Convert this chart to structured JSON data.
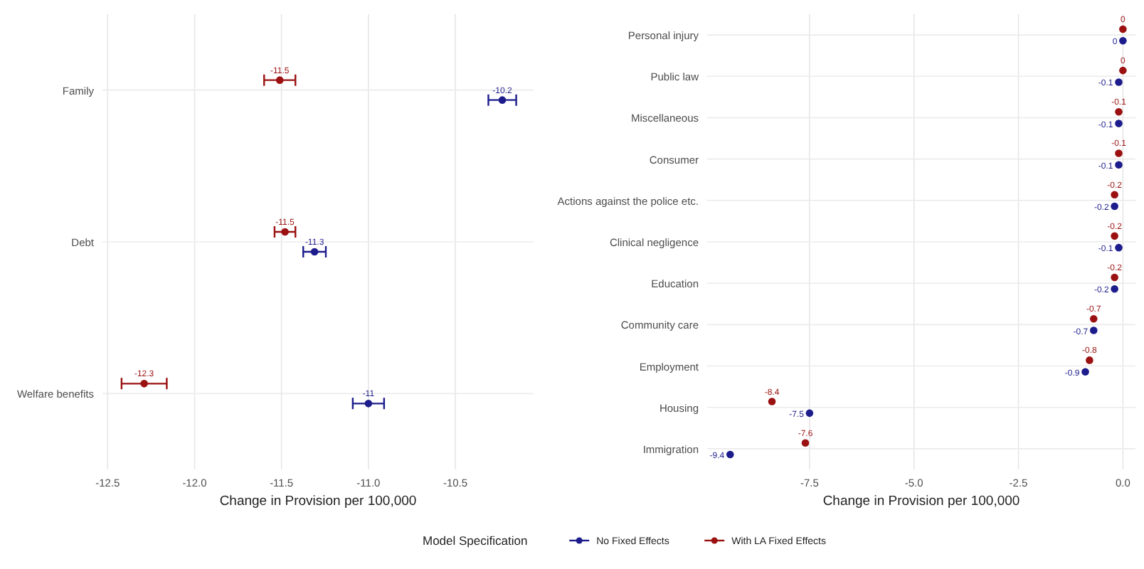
{
  "chart_data": [
    {
      "type": "scatter",
      "orientation": "horizontal",
      "xlabel": "Change in Provision per 100,000",
      "categories": [
        "Family",
        "Debt",
        "Welfare benefits"
      ],
      "xlim": [
        -12.53,
        -10.05
      ],
      "xticks": [
        -12.5,
        {
          "value": -12,
          "label": "-12.0"
        },
        -11.5,
        {
          "value": -11,
          "label": "-11.0"
        },
        -10.5
      ],
      "grid": true,
      "marker": "circle",
      "legend": "bottom",
      "legend_title": "Model Specification",
      "series": [
        {
          "name": "No Fixed Effects",
          "color": "#1c1c8c",
          "values": [
            -10.23,
            -11.31,
            -11.0
          ],
          "errors": [
            0.08,
            0.065,
            0.09
          ],
          "value_labels": [
            "-10.2",
            "-11.3",
            "-11"
          ]
        },
        {
          "name": "With LA Fixed Effects",
          "color": "#9b1010",
          "values": [
            -11.51,
            -11.48,
            -12.29
          ],
          "errors": [
            0.09,
            0.06,
            0.13
          ],
          "value_labels": [
            "-11.5",
            "-11.5",
            "-12.3"
          ]
        }
      ]
    },
    {
      "type": "scatter",
      "orientation": "horizontal",
      "xlabel": "Change in Provision per 100,000",
      "categories": [
        "Personal injury",
        "Public law",
        "Miscellaneous",
        "Consumer",
        "Actions against the police etc.",
        "Clinical negligence",
        "Education",
        "Community care",
        "Employment",
        "Housing",
        "Immigration"
      ],
      "xlim": [
        -9.95,
        0.3
      ],
      "xticks": [
        -7.5,
        {
          "value": -5,
          "label": "-5.0"
        },
        -2.5,
        {
          "value": 0,
          "label": "0.0"
        }
      ],
      "grid": true,
      "marker": "circle",
      "series": [
        {
          "color": "#1c1c8c",
          "values": [
            0,
            -0.1,
            -0.1,
            -0.1,
            -0.2,
            -0.1,
            -0.2,
            -0.7,
            -0.9,
            -7.5,
            -9.4
          ],
          "value_labels": [
            "0",
            "-0.1",
            "-0.1",
            "-0.1",
            "-0.2",
            "-0.1",
            "-0.2",
            "-0.7",
            "-0.9",
            "-7.5",
            "-9.4"
          ]
        },
        {
          "color": "#9b1010",
          "values": [
            0,
            0,
            -0.1,
            -0.1,
            -0.2,
            -0.2,
            -0.2,
            -0.7,
            -0.8,
            -8.4,
            -7.6
          ],
          "value_labels": [
            "0",
            "0",
            "-0.1",
            "-0.1",
            "-0.2",
            "-0.2",
            "-0.2",
            "-0.7",
            "-0.8",
            "-8.4",
            "-7.6"
          ]
        }
      ]
    }
  ]
}
